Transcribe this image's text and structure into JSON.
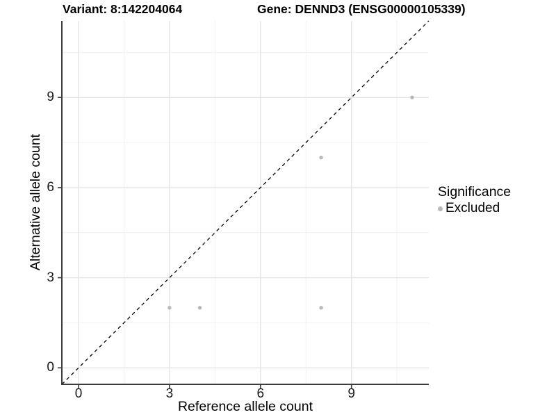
{
  "header": {
    "title_left": "Variant: 8:142204064",
    "title_right": "Gene: DENND3 (ENSG00000105339)"
  },
  "chart_data": {
    "type": "scatter",
    "title": "Variant: 8:142204064   Gene: DENND3 (ENSG00000105339)",
    "xlabel": "Reference allele count",
    "ylabel": "Alternative allele count",
    "xlim": [
      -0.55,
      11.55
    ],
    "ylim": [
      -0.55,
      11.55
    ],
    "x_ticks": [
      0,
      3,
      6,
      9
    ],
    "y_ticks": [
      0,
      3,
      6,
      9
    ],
    "x_minor_ticks": [
      1.5,
      4.5,
      7.5,
      10.5
    ],
    "y_minor_ticks": [
      1.5,
      4.5,
      7.5,
      10.5
    ],
    "grid": "major+minor",
    "points": [
      {
        "x": 3,
        "y": 2,
        "series": "Excluded"
      },
      {
        "x": 4,
        "y": 2,
        "series": "Excluded"
      },
      {
        "x": 8,
        "y": 2,
        "series": "Excluded"
      },
      {
        "x": 8,
        "y": 7,
        "series": "Excluded"
      },
      {
        "x": 11,
        "y": 9,
        "series": "Excluded"
      }
    ],
    "identity_line": {
      "slope": 1,
      "intercept": 0,
      "style": "dashed",
      "color": "#000000"
    },
    "legend": {
      "position": "right",
      "title": "Significance",
      "items": [
        {
          "label": "Excluded",
          "color": "#b8b8b8"
        }
      ]
    },
    "colors": {
      "point": "#b8b8b8",
      "grid_major": "#e3e3e3",
      "grid_minor": "#f1f1f1",
      "axis_line": "#3c3c3c",
      "tick_text": "#1a1a1a",
      "background": "#ffffff"
    }
  }
}
